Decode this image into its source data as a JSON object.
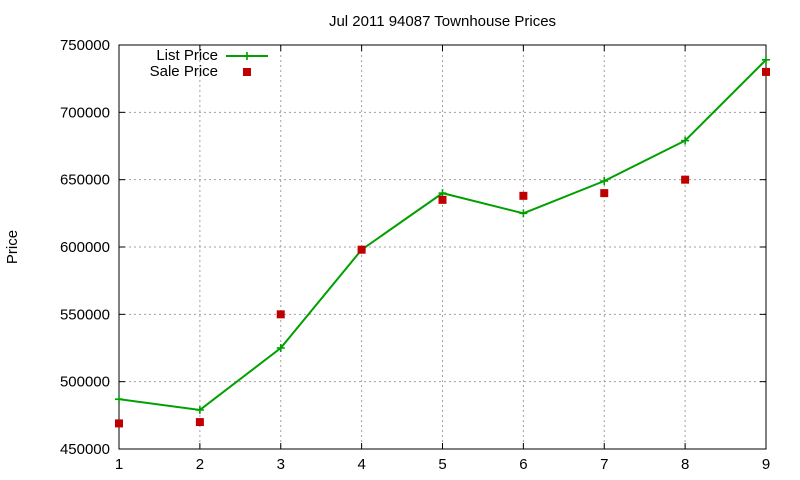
{
  "chart_data": {
    "type": "line",
    "title": "Jul 2011 94087 Townhouse Prices",
    "xlabel": "",
    "ylabel": "Price",
    "x": [
      1,
      2,
      3,
      4,
      5,
      6,
      7,
      8,
      9
    ],
    "xlim": [
      1,
      9
    ],
    "ylim": [
      450000,
      750000
    ],
    "yticks": [
      450000,
      500000,
      550000,
      600000,
      650000,
      700000,
      750000
    ],
    "xticks": [
      1,
      2,
      3,
      4,
      5,
      6,
      7,
      8,
      9
    ],
    "grid": true,
    "legend_position": "top-left",
    "series": [
      {
        "name": "List Price",
        "style": "line-with-plus-markers",
        "color": "#00a000",
        "values": [
          487000,
          479000,
          525000,
          598000,
          640000,
          625000,
          649000,
          679000,
          739000
        ]
      },
      {
        "name": "Sale Price",
        "style": "square-points",
        "color": "#c00000",
        "values": [
          469000,
          470000,
          550000,
          598000,
          635000,
          638000,
          640000,
          650000,
          730000
        ]
      }
    ]
  }
}
